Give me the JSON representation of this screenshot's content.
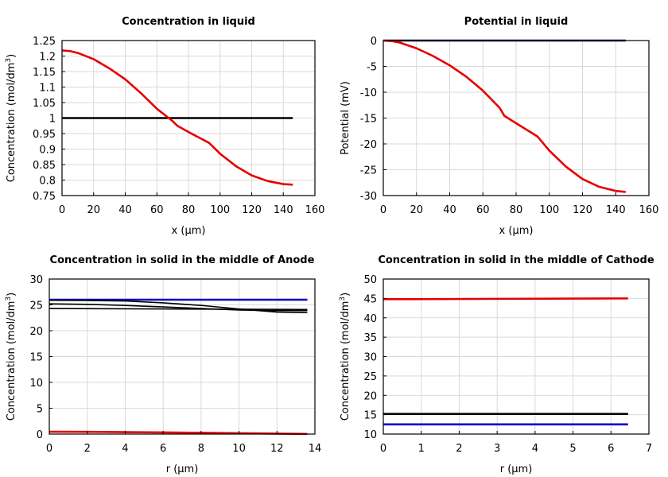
{
  "chart_data": [
    {
      "type": "line",
      "title": "Concentration in liquid",
      "xlabel": "x (µm)",
      "ylabel": "Concentration (mol/dm",
      "ylabel_sup": "3",
      "ylabel_tail": ")",
      "xlim": [
        0,
        160
      ],
      "ylim": [
        0.75,
        1.25
      ],
      "xticks": [
        0,
        20,
        40,
        60,
        80,
        100,
        120,
        140,
        160
      ],
      "yticks": [
        0.75,
        0.8,
        0.85,
        0.9,
        0.95,
        1,
        1.05,
        1.1,
        1.15,
        1.2,
        1.25
      ],
      "grid": true,
      "series": [
        {
          "color": "#000000",
          "x": [
            0,
            146
          ],
          "y": [
            1.0,
            1.0
          ]
        },
        {
          "color": "#e60000",
          "x": [
            0,
            5,
            10,
            20,
            30,
            40,
            50,
            60,
            70,
            73,
            80,
            93,
            100,
            110,
            120,
            130,
            140,
            146
          ],
          "y": [
            1.218,
            1.216,
            1.21,
            1.19,
            1.16,
            1.125,
            1.08,
            1.03,
            0.99,
            0.975,
            0.955,
            0.92,
            0.885,
            0.845,
            0.815,
            0.797,
            0.787,
            0.785
          ]
        }
      ]
    },
    {
      "type": "line",
      "title": "Potential in liquid",
      "xlabel": "x (µm)",
      "ylabel": "Potential (mV)",
      "ylabel_sup": "",
      "ylabel_tail": "",
      "xlim": [
        0,
        160
      ],
      "ylim": [
        -30,
        0
      ],
      "xticks": [
        0,
        20,
        40,
        60,
        80,
        100,
        120,
        140,
        160
      ],
      "yticks": [
        -30,
        -25,
        -20,
        -15,
        -10,
        -5,
        0
      ],
      "grid": true,
      "series": [
        {
          "color": "#000033",
          "x": [
            0,
            146
          ],
          "y": [
            0,
            0
          ]
        },
        {
          "color": "#e60000",
          "x": [
            0,
            5,
            10,
            20,
            30,
            40,
            50,
            60,
            70,
            73,
            80,
            93,
            100,
            110,
            120,
            130,
            140,
            146
          ],
          "y": [
            0,
            -0.1,
            -0.4,
            -1.5,
            -3.0,
            -4.8,
            -7.0,
            -9.7,
            -13.0,
            -14.6,
            -16.0,
            -18.6,
            -21.3,
            -24.4,
            -26.8,
            -28.3,
            -29.1,
            -29.3
          ]
        }
      ]
    },
    {
      "type": "line",
      "title": "Concentration in solid in the middle of Anode",
      "xlabel": "r (µm)",
      "ylabel": "Concentration (mol/dm",
      "ylabel_sup": "3",
      "ylabel_tail": ")",
      "xlim": [
        0,
        14
      ],
      "ylim": [
        0,
        30
      ],
      "xticks": [
        0,
        2,
        4,
        6,
        8,
        10,
        12,
        14
      ],
      "yticks": [
        0,
        5,
        10,
        15,
        20,
        25,
        30
      ],
      "grid": true,
      "series": [
        {
          "color": "#0000cc",
          "x": [
            0,
            13.6
          ],
          "y": [
            26.0,
            26.0
          ]
        },
        {
          "color": "#000000",
          "x": [
            0,
            2,
            4,
            6,
            8,
            10,
            12,
            13.6
          ],
          "y": [
            25.9,
            25.85,
            25.75,
            25.4,
            24.9,
            24.2,
            23.6,
            23.5
          ]
        },
        {
          "color": "#000000",
          "x": [
            0,
            2,
            4,
            6,
            8,
            10,
            12,
            13.6
          ],
          "y": [
            25.2,
            25.1,
            24.9,
            24.6,
            24.3,
            24.0,
            23.9,
            23.9
          ]
        },
        {
          "color": "#000000",
          "x": [
            0,
            13.6
          ],
          "y": [
            24.3,
            24.1
          ]
        },
        {
          "color": "#e60000",
          "x": [
            0,
            2,
            4,
            6,
            8,
            10,
            12,
            13.6
          ],
          "y": [
            0.45,
            0.43,
            0.38,
            0.32,
            0.25,
            0.17,
            0.08,
            0.02
          ]
        }
      ]
    },
    {
      "type": "line",
      "title": "Concentration in solid in the middle of Cathode",
      "xlabel": "r (µm)",
      "ylabel": "Concentration (mol/dm",
      "ylabel_sup": "3",
      "ylabel_tail": ")",
      "xlim": [
        0,
        7
      ],
      "ylim": [
        10,
        50
      ],
      "xticks": [
        0,
        1,
        2,
        3,
        4,
        5,
        6,
        7
      ],
      "yticks": [
        10,
        15,
        20,
        25,
        30,
        35,
        40,
        45,
        50
      ],
      "grid": true,
      "series": [
        {
          "color": "#e60000",
          "x": [
            0,
            6.45
          ],
          "y": [
            44.8,
            45.0
          ]
        },
        {
          "color": "#000000",
          "x": [
            0,
            6.45
          ],
          "y": [
            15.2,
            15.2
          ]
        },
        {
          "color": "#0000cc",
          "x": [
            0,
            6.45
          ],
          "y": [
            12.5,
            12.5
          ]
        }
      ]
    }
  ]
}
